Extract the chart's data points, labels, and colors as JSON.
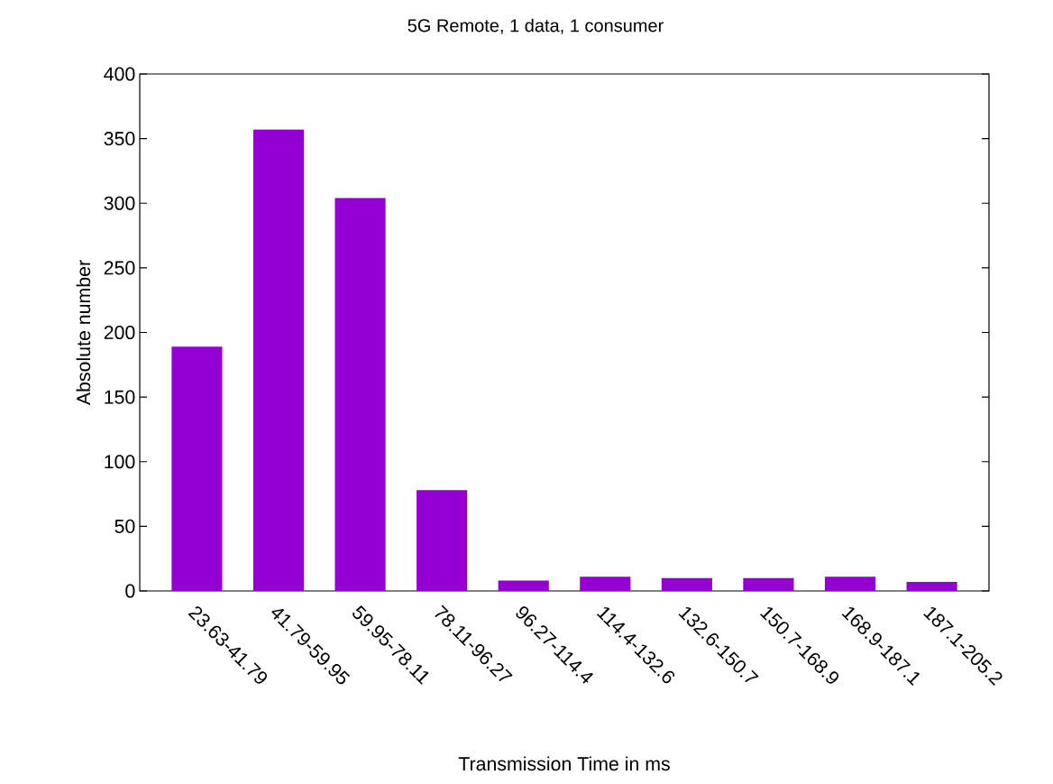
{
  "chart_data": {
    "type": "bar",
    "title": "5G Remote, 1 data, 1 consumer",
    "xlabel": "Transmission Time in ms",
    "ylabel": "Absolute number",
    "categories": [
      "23.63-41.79",
      "41.79-59.95",
      "59.95-78.11",
      "78.11-96.27",
      "96.27-114.4",
      "114.4-132.6",
      "132.6-150.7",
      "150.7-168.9",
      "168.9-187.1",
      "187.1-205.2"
    ],
    "values": [
      189,
      357,
      304,
      78,
      8,
      11,
      10,
      10,
      11,
      7
    ],
    "color": "#9400d3",
    "ylim": [
      0,
      400
    ],
    "yticks": [
      0,
      50,
      100,
      150,
      200,
      250,
      300,
      350,
      400
    ],
    "grid": false
  }
}
